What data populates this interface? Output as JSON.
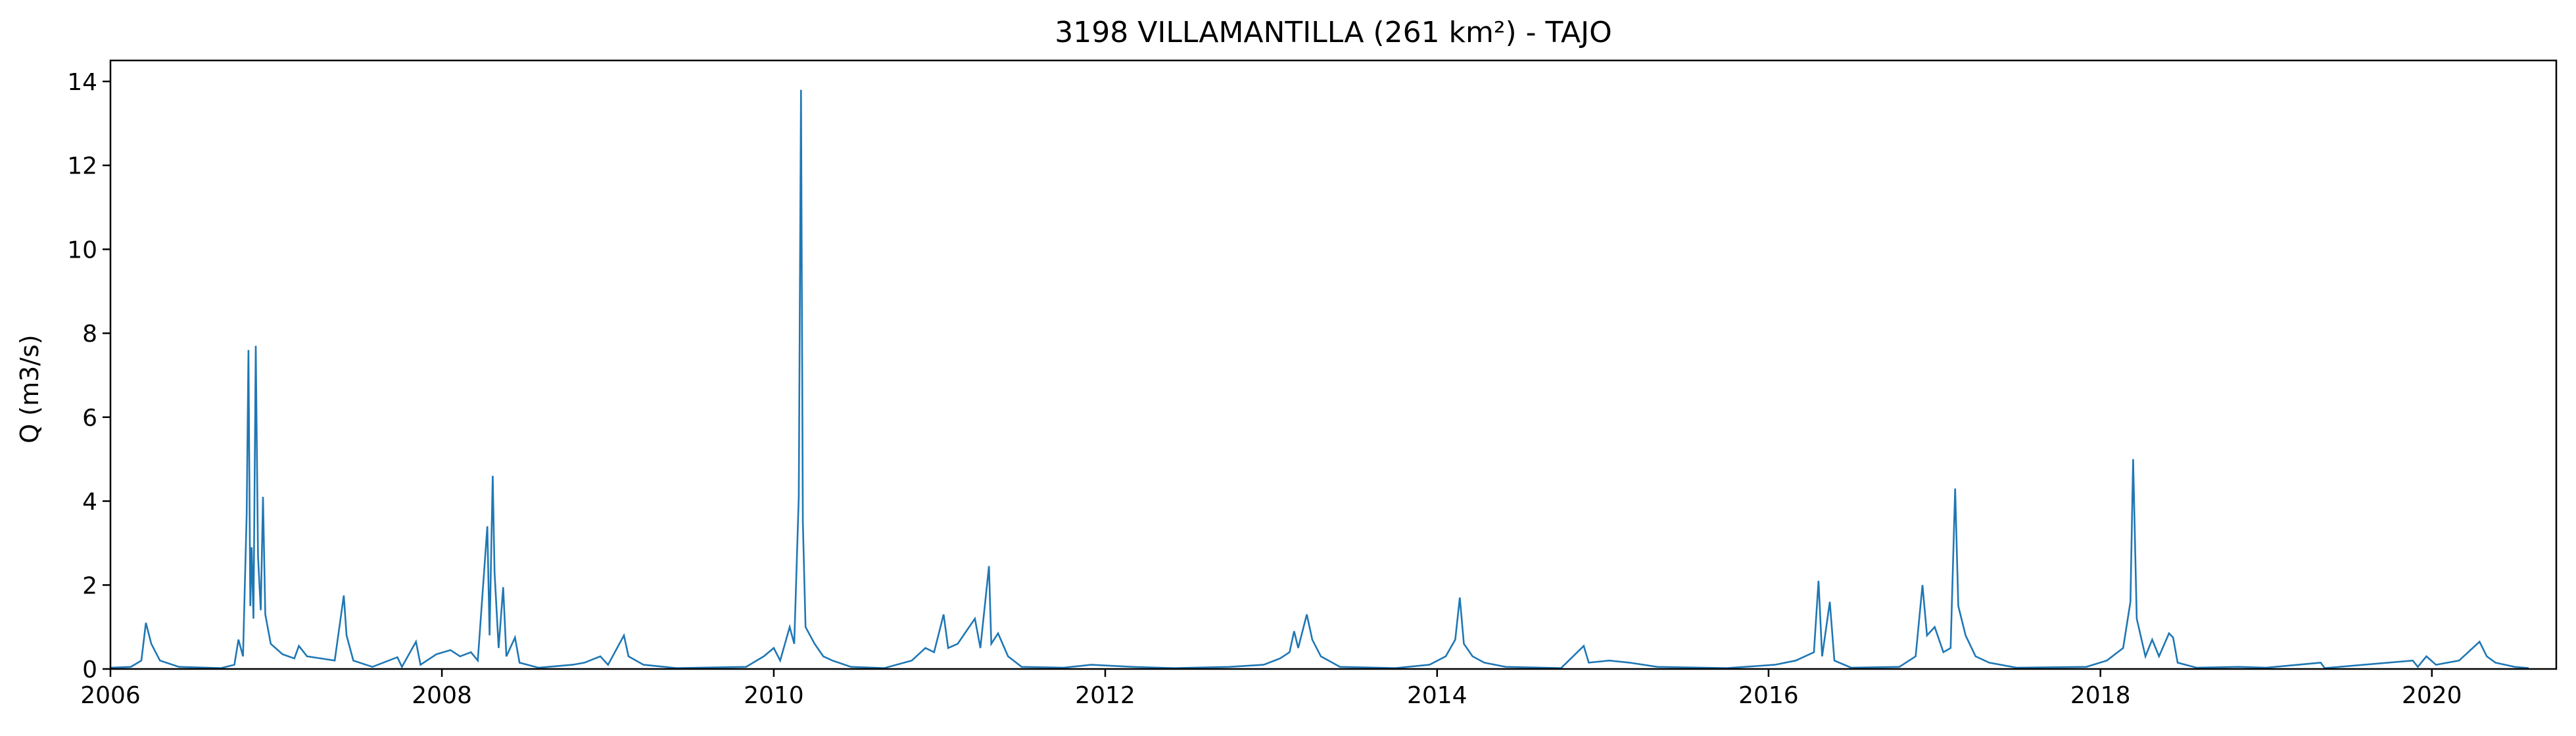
{
  "chart_data": {
    "type": "line",
    "title": "3198 VILLAMANTILLA (261 km²) - TAJO",
    "xlabel": "",
    "ylabel": "Q (m3/s)",
    "xlim": [
      "2006-01-01",
      "2020-10-01"
    ],
    "ylim": [
      0,
      14.5
    ],
    "xticks": [
      "2006",
      "2008",
      "2010",
      "2012",
      "2014",
      "2016",
      "2018",
      "2020"
    ],
    "yticks": [
      "0",
      "2",
      "4",
      "6",
      "8",
      "10",
      "12",
      "14"
    ],
    "grid": false,
    "legend": "none",
    "series": [
      {
        "color": "#1f77b4",
        "points": [
          [
            "2006-01-01",
            0.03
          ],
          [
            "2006-02-15",
            0.05
          ],
          [
            "2006-03-10",
            0.2
          ],
          [
            "2006-03-20",
            1.1
          ],
          [
            "2006-04-01",
            0.6
          ],
          [
            "2006-04-20",
            0.2
          ],
          [
            "2006-06-01",
            0.05
          ],
          [
            "2006-09-01",
            0.02
          ],
          [
            "2006-10-01",
            0.1
          ],
          [
            "2006-10-10",
            0.7
          ],
          [
            "2006-10-20",
            0.3
          ],
          [
            "2006-10-28",
            3.7
          ],
          [
            "2006-11-01",
            7.6
          ],
          [
            "2006-11-05",
            1.5
          ],
          [
            "2006-11-08",
            2.9
          ],
          [
            "2006-11-12",
            1.2
          ],
          [
            "2006-11-17",
            7.7
          ],
          [
            "2006-11-22",
            2.7
          ],
          [
            "2006-11-28",
            1.4
          ],
          [
            "2006-12-03",
            4.1
          ],
          [
            "2006-12-08",
            1.3
          ],
          [
            "2006-12-20",
            0.6
          ],
          [
            "2007-01-15",
            0.35
          ],
          [
            "2007-02-10",
            0.25
          ],
          [
            "2007-02-20",
            0.55
          ],
          [
            "2007-03-10",
            0.3
          ],
          [
            "2007-04-10",
            0.25
          ],
          [
            "2007-05-10",
            0.2
          ],
          [
            "2007-05-30",
            1.75
          ],
          [
            "2007-06-05",
            0.8
          ],
          [
            "2007-06-20",
            0.2
          ],
          [
            "2007-08-01",
            0.05
          ],
          [
            "2007-09-25",
            0.28
          ],
          [
            "2007-10-05",
            0.05
          ],
          [
            "2007-11-05",
            0.65
          ],
          [
            "2007-11-15",
            0.1
          ],
          [
            "2007-12-20",
            0.35
          ],
          [
            "2008-01-20",
            0.45
          ],
          [
            "2008-02-10",
            0.3
          ],
          [
            "2008-03-05",
            0.4
          ],
          [
            "2008-03-20",
            0.2
          ],
          [
            "2008-04-10",
            3.4
          ],
          [
            "2008-04-15",
            0.8
          ],
          [
            "2008-04-22",
            4.6
          ],
          [
            "2008-04-26",
            2.3
          ],
          [
            "2008-05-05",
            0.5
          ],
          [
            "2008-05-15",
            1.95
          ],
          [
            "2008-05-22",
            0.3
          ],
          [
            "2008-06-10",
            0.75
          ],
          [
            "2008-06-20",
            0.15
          ],
          [
            "2008-08-01",
            0.03
          ],
          [
            "2008-10-15",
            0.1
          ],
          [
            "2008-11-10",
            0.15
          ],
          [
            "2008-12-15",
            0.3
          ],
          [
            "2009-01-01",
            0.1
          ],
          [
            "2009-02-05",
            0.8
          ],
          [
            "2009-02-15",
            0.3
          ],
          [
            "2009-03-20",
            0.1
          ],
          [
            "2009-06-01",
            0.02
          ],
          [
            "2009-11-01",
            0.05
          ],
          [
            "2009-12-10",
            0.3
          ],
          [
            "2010-01-01",
            0.5
          ],
          [
            "2010-01-15",
            0.2
          ],
          [
            "2010-02-05",
            1.0
          ],
          [
            "2010-02-15",
            0.6
          ],
          [
            "2010-02-25",
            4.1
          ],
          [
            "2010-03-02",
            13.8
          ],
          [
            "2010-03-06",
            3.5
          ],
          [
            "2010-03-12",
            1.0
          ],
          [
            "2010-04-01",
            0.6
          ],
          [
            "2010-04-20",
            0.3
          ],
          [
            "2010-05-10",
            0.2
          ],
          [
            "2010-06-20",
            0.05
          ],
          [
            "2010-09-01",
            0.02
          ],
          [
            "2010-11-01",
            0.2
          ],
          [
            "2010-12-01",
            0.5
          ],
          [
            "2010-12-20",
            0.4
          ],
          [
            "2011-01-10",
            1.3
          ],
          [
            "2011-01-20",
            0.5
          ],
          [
            "2011-02-10",
            0.6
          ],
          [
            "2011-03-01",
            0.9
          ],
          [
            "2011-03-20",
            1.2
          ],
          [
            "2011-04-01",
            0.5
          ],
          [
            "2011-04-20",
            2.45
          ],
          [
            "2011-04-25",
            0.6
          ],
          [
            "2011-05-10",
            0.85
          ],
          [
            "2011-06-01",
            0.3
          ],
          [
            "2011-07-01",
            0.05
          ],
          [
            "2011-10-01",
            0.03
          ],
          [
            "2011-12-01",
            0.1
          ],
          [
            "2012-03-01",
            0.05
          ],
          [
            "2012-06-01",
            0.02
          ],
          [
            "2012-10-01",
            0.05
          ],
          [
            "2012-12-15",
            0.1
          ],
          [
            "2013-01-20",
            0.25
          ],
          [
            "2013-02-10",
            0.4
          ],
          [
            "2013-02-20",
            0.9
          ],
          [
            "2013-03-01",
            0.5
          ],
          [
            "2013-03-20",
            1.3
          ],
          [
            "2013-04-01",
            0.7
          ],
          [
            "2013-04-20",
            0.3
          ],
          [
            "2013-06-01",
            0.05
          ],
          [
            "2013-10-01",
            0.02
          ],
          [
            "2013-12-15",
            0.1
          ],
          [
            "2014-01-20",
            0.3
          ],
          [
            "2014-02-10",
            0.7
          ],
          [
            "2014-02-20",
            1.7
          ],
          [
            "2014-03-01",
            0.6
          ],
          [
            "2014-03-20",
            0.3
          ],
          [
            "2014-04-15",
            0.15
          ],
          [
            "2014-06-01",
            0.05
          ],
          [
            "2014-10-01",
            0.02
          ],
          [
            "2014-11-20",
            0.55
          ],
          [
            "2014-12-01",
            0.15
          ],
          [
            "2015-01-15",
            0.2
          ],
          [
            "2015-03-01",
            0.15
          ],
          [
            "2015-05-01",
            0.05
          ],
          [
            "2015-10-01",
            0.02
          ],
          [
            "2016-01-15",
            0.1
          ],
          [
            "2016-03-01",
            0.2
          ],
          [
            "2016-04-10",
            0.4
          ],
          [
            "2016-04-20",
            2.1
          ],
          [
            "2016-04-28",
            0.3
          ],
          [
            "2016-05-15",
            1.6
          ],
          [
            "2016-05-25",
            0.2
          ],
          [
            "2016-07-01",
            0.03
          ],
          [
            "2016-10-15",
            0.05
          ],
          [
            "2016-11-20",
            0.3
          ],
          [
            "2016-12-05",
            2.0
          ],
          [
            "2016-12-15",
            0.8
          ],
          [
            "2017-01-01",
            1.0
          ],
          [
            "2017-01-20",
            0.4
          ],
          [
            "2017-02-05",
            0.5
          ],
          [
            "2017-02-15",
            4.3
          ],
          [
            "2017-02-22",
            1.5
          ],
          [
            "2017-03-10",
            0.8
          ],
          [
            "2017-04-01",
            0.3
          ],
          [
            "2017-05-01",
            0.15
          ],
          [
            "2017-07-01",
            0.03
          ],
          [
            "2017-12-01",
            0.05
          ],
          [
            "2018-01-15",
            0.2
          ],
          [
            "2018-02-20",
            0.5
          ],
          [
            "2018-03-08",
            1.6
          ],
          [
            "2018-03-14",
            5.0
          ],
          [
            "2018-03-22",
            1.2
          ],
          [
            "2018-04-10",
            0.3
          ],
          [
            "2018-04-25",
            0.7
          ],
          [
            "2018-05-10",
            0.3
          ],
          [
            "2018-06-01",
            0.85
          ],
          [
            "2018-06-10",
            0.75
          ],
          [
            "2018-06-20",
            0.15
          ],
          [
            "2018-08-01",
            0.03
          ],
          [
            "2018-11-01",
            0.05
          ],
          [
            "2019-01-01",
            0.03
          ],
          [
            "2019-05-01",
            0.15
          ],
          [
            "2019-05-10",
            0.02
          ],
          [
            "2019-11-20",
            0.2
          ],
          [
            "2019-12-01",
            0.05
          ],
          [
            "2019-12-20",
            0.3
          ],
          [
            "2020-01-10",
            0.1
          ],
          [
            "2020-03-01",
            0.2
          ],
          [
            "2020-04-15",
            0.65
          ],
          [
            "2020-05-01",
            0.3
          ],
          [
            "2020-05-20",
            0.15
          ],
          [
            "2020-07-01",
            0.05
          ],
          [
            "2020-08-01",
            0.02
          ]
        ]
      }
    ]
  }
}
